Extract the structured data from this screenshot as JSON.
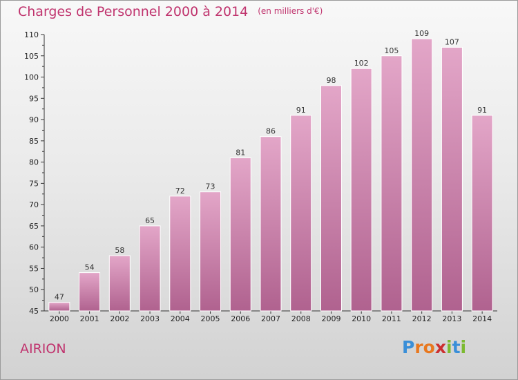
{
  "title": "Charges de Personnel 2000 à 2014",
  "subtitle": "(en milliers d'€)",
  "place": "AIRION",
  "brand": {
    "letters": [
      "P",
      "r",
      "o",
      "x",
      "i",
      "t",
      "i"
    ],
    "colors": [
      "#3a8fd8",
      "#e8781f",
      "#e8781f",
      "#cc2f2f",
      "#7cba2f",
      "#3a8fd8",
      "#7cba2f"
    ]
  },
  "chart_data": {
    "type": "bar",
    "categories": [
      "2000",
      "2001",
      "2002",
      "2003",
      "2004",
      "2005",
      "2006",
      "2007",
      "2008",
      "2009",
      "2010",
      "2011",
      "2012",
      "2013",
      "2014"
    ],
    "values": [
      47,
      54,
      58,
      65,
      72,
      73,
      81,
      86,
      91,
      98,
      102,
      105,
      109,
      107,
      91
    ],
    "ylim": [
      45,
      110
    ],
    "yticks": [
      45,
      50,
      55,
      60,
      65,
      70,
      75,
      80,
      85,
      90,
      95,
      100,
      105,
      110
    ],
    "grid": false,
    "bar_color": "#c8629a"
  }
}
